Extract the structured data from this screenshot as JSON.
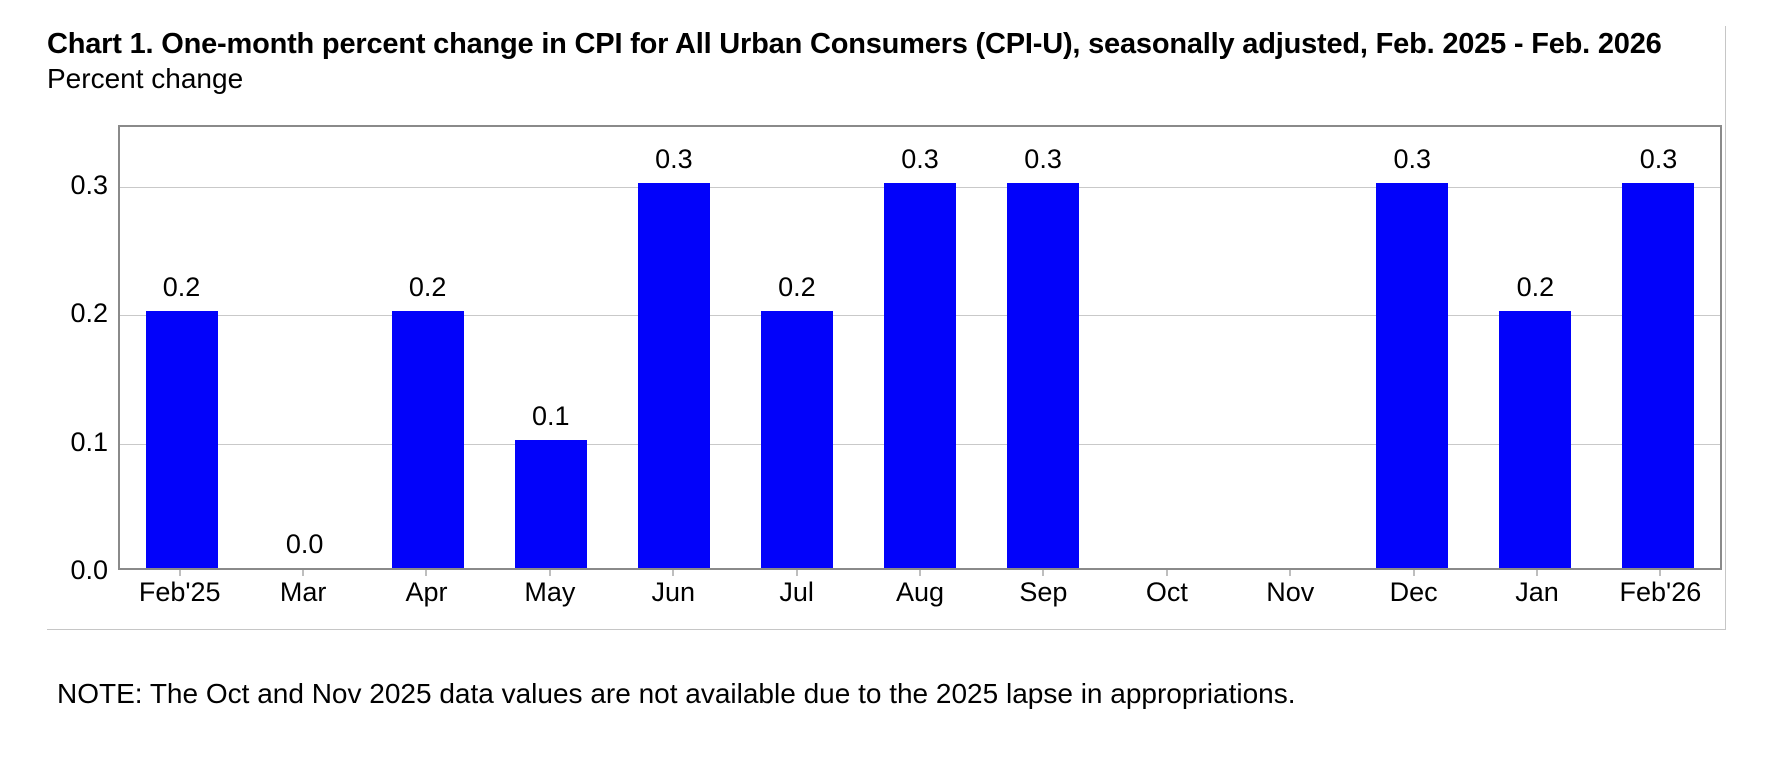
{
  "chart": {
    "title": "Chart 1. One-month percent change in CPI for All Urban Consumers (CPI-U), seasonally adjusted, Feb. 2025 - Feb. 2026",
    "subtitle": "Percent change"
  },
  "chart_data": {
    "type": "bar",
    "title": "Chart 1. One-month percent change in CPI for All Urban Consumers (CPI-U), seasonally adjusted, Feb. 2025 - Feb. 2026",
    "subtitle": "Percent change",
    "categories": [
      "Feb'25",
      "Mar",
      "Apr",
      "May",
      "Jun",
      "Jul",
      "Aug",
      "Sep",
      "Oct",
      "Nov",
      "Dec",
      "Jan",
      "Feb'26"
    ],
    "values": [
      0.2,
      0.0,
      0.2,
      0.1,
      0.3,
      0.2,
      0.3,
      0.3,
      null,
      null,
      0.3,
      0.2,
      0.3
    ],
    "data_labels": [
      "0.2",
      "0.0",
      "0.2",
      "0.1",
      "0.3",
      "0.2",
      "0.3",
      "0.3",
      "",
      "",
      "0.3",
      "0.2",
      "0.3"
    ],
    "missing_categories": [
      "Oct",
      "Nov"
    ],
    "xlabel": "",
    "ylabel": "Percent change",
    "ylim": [
      0,
      0.3467
    ],
    "yticks": [
      0.0,
      0.1,
      0.2,
      0.3
    ],
    "ytick_labels": [
      "0.0",
      "0.1",
      "0.2",
      "0.3"
    ],
    "grid": true,
    "legend": false,
    "bar_color": "#0202fa",
    "gridline_color": "#c9c9c9",
    "plot_border_color": "#8a8a8a"
  },
  "note": "NOTE: The Oct and Nov 2025 data values are not available due to the 2025 lapse in appropriations."
}
